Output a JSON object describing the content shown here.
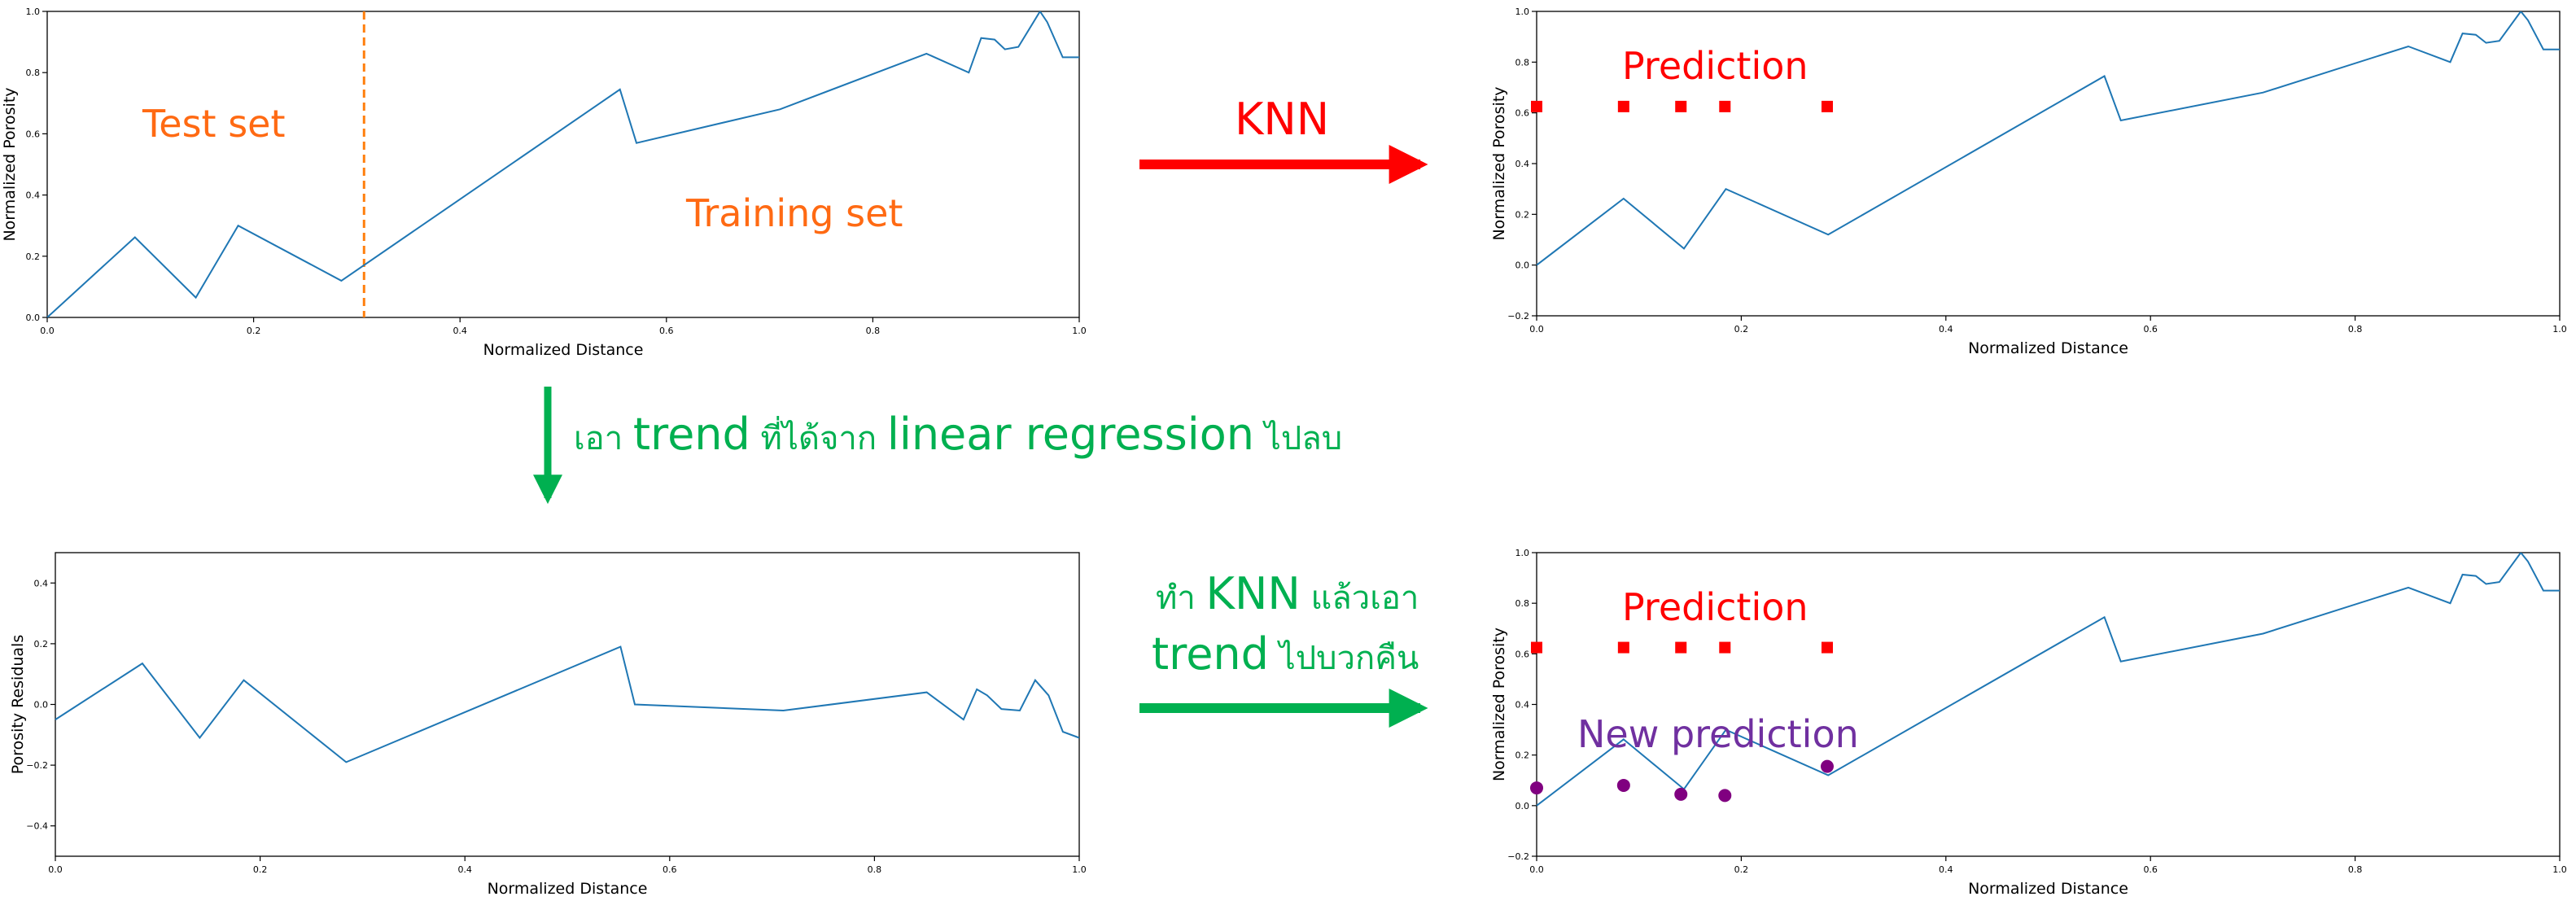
{
  "colors": {
    "series_line": "#1f77b4",
    "split_line": "#ff7f0e",
    "orange_text": "#ff6a13",
    "red": "#ff0000",
    "green": "#00b050",
    "purple": "#7030a0",
    "new_pred_marker": "#800080"
  },
  "chart_data": [
    {
      "type": "line",
      "panel": "top-left",
      "xlabel": "Normalized Distance",
      "ylabel": "Normalized Porosity",
      "xlim": [
        0.0,
        1.0
      ],
      "ylim": [
        0.0,
        1.0
      ],
      "xticks": [
        "0.0",
        "0.2",
        "0.4",
        "0.6",
        "0.8",
        "1.0"
      ],
      "yticks": [
        "0.0",
        "0.2",
        "0.4",
        "0.6",
        "0.8",
        "1.0"
      ],
      "grid": false,
      "series": [
        {
          "x": [
            0.0,
            0.085,
            0.144,
            0.185,
            0.285,
            0.555,
            0.571,
            0.71,
            0.852,
            0.893,
            0.905,
            0.918,
            0.928,
            0.941,
            0.962,
            0.969,
            0.984,
            0.993,
            1.0
          ],
          "y": [
            0.0,
            0.262,
            0.065,
            0.3,
            0.12,
            0.745,
            0.57,
            0.68,
            0.862,
            0.8,
            0.913,
            0.908,
            0.876,
            0.884,
            1.0,
            0.965,
            0.85,
            0.85,
            0.85
          ]
        }
      ],
      "vline_x": 0.307,
      "annotations": [
        "Test set",
        "Training set"
      ]
    },
    {
      "type": "line",
      "panel": "top-right",
      "xlabel": "Normalized Distance",
      "ylabel": "Normalized Porosity",
      "xlim": [
        0.0,
        1.0
      ],
      "ylim": [
        -0.2,
        1.0
      ],
      "xticks": [
        "0.0",
        "0.2",
        "0.4",
        "0.6",
        "0.8",
        "1.0"
      ],
      "yticks": [
        "−0.2",
        "0.0",
        "0.2",
        "0.4",
        "0.6",
        "0.8",
        "1.0"
      ],
      "grid": false,
      "series": [
        {
          "x": [
            0.0,
            0.085,
            0.144,
            0.185,
            0.285,
            0.555,
            0.571,
            0.71,
            0.852,
            0.893,
            0.905,
            0.918,
            0.928,
            0.941,
            0.962,
            0.969,
            0.984,
            0.993,
            1.0
          ],
          "y": [
            0.0,
            0.262,
            0.065,
            0.3,
            0.12,
            0.745,
            0.57,
            0.68,
            0.862,
            0.8,
            0.913,
            0.908,
            0.876,
            0.884,
            1.0,
            0.965,
            0.85,
            0.85,
            0.85
          ]
        }
      ],
      "prediction_points": {
        "x": [
          0.0,
          0.085,
          0.141,
          0.184,
          0.284
        ],
        "y": [
          0.625,
          0.625,
          0.625,
          0.625,
          0.625
        ]
      },
      "annotations": [
        "Prediction"
      ]
    },
    {
      "type": "line",
      "panel": "bottom-left",
      "xlabel": "Normalized Distance",
      "ylabel": "Porosity Residuals",
      "xlim": [
        0.0,
        1.0
      ],
      "ylim": [
        -0.5,
        0.5
      ],
      "xticks": [
        "0.0",
        "0.2",
        "0.4",
        "0.6",
        "0.8",
        "1.0"
      ],
      "yticks": [
        "−0.4",
        "−0.2",
        "0.0",
        "0.2",
        "0.4"
      ],
      "grid": false,
      "series": [
        {
          "x": [
            0.0,
            0.085,
            0.141,
            0.184,
            0.284,
            0.552,
            0.566,
            0.711,
            0.851,
            0.887,
            0.9,
            0.91,
            0.924,
            0.942,
            0.957,
            0.97,
            0.984,
            1.0
          ],
          "y": [
            -0.05,
            0.135,
            -0.11,
            0.08,
            -0.19,
            0.19,
            0.0,
            -0.02,
            0.04,
            -0.05,
            0.05,
            0.03,
            -0.015,
            -0.02,
            0.08,
            0.03,
            -0.09,
            -0.11
          ]
        }
      ]
    },
    {
      "type": "line",
      "panel": "bottom-right",
      "xlabel": "Normalized Distance",
      "ylabel": "Normalized Porosity",
      "xlim": [
        0.0,
        1.0
      ],
      "ylim": [
        -0.2,
        1.0
      ],
      "xticks": [
        "0.0",
        "0.2",
        "0.4",
        "0.6",
        "0.8",
        "1.0"
      ],
      "yticks": [
        "−0.2",
        "0.0",
        "0.2",
        "0.4",
        "0.6",
        "0.8",
        "1.0"
      ],
      "grid": false,
      "series": [
        {
          "x": [
            0.0,
            0.085,
            0.144,
            0.185,
            0.285,
            0.555,
            0.571,
            0.71,
            0.852,
            0.893,
            0.905,
            0.918,
            0.928,
            0.941,
            0.962,
            0.969,
            0.984,
            0.993,
            1.0
          ],
          "y": [
            0.0,
            0.262,
            0.065,
            0.3,
            0.12,
            0.745,
            0.57,
            0.68,
            0.862,
            0.8,
            0.913,
            0.908,
            0.876,
            0.884,
            1.0,
            0.965,
            0.85,
            0.85,
            0.85
          ]
        }
      ],
      "prediction_points": {
        "x": [
          0.0,
          0.085,
          0.141,
          0.184,
          0.284
        ],
        "y": [
          0.625,
          0.625,
          0.625,
          0.625,
          0.625
        ]
      },
      "new_prediction_points": {
        "x": [
          0.0,
          0.085,
          0.141,
          0.184,
          0.284
        ],
        "y": [
          0.07,
          0.08,
          0.045,
          0.04,
          0.155
        ]
      },
      "annotations": [
        "Prediction",
        "New prediction"
      ]
    }
  ],
  "annotations": {
    "test_set": "Test set",
    "training_set": "Training set",
    "knn": "KNN",
    "prediction_top": "Prediction",
    "prediction_bottom": "Prediction",
    "new_prediction": "New prediction",
    "step_remove_trend": {
      "p1": "เอา ",
      "p2": "trend",
      "p3": " ที่ได้จาก ",
      "p4": "linear regression",
      "p5": " ไปลบ"
    },
    "step_knn_add_trend": {
      "line1_a": "ทำ ",
      "line1_b": "KNN",
      "line1_c": " แล้วเอา",
      "line2_a": "trend",
      "line2_b": " ไปบวกคืน"
    }
  }
}
